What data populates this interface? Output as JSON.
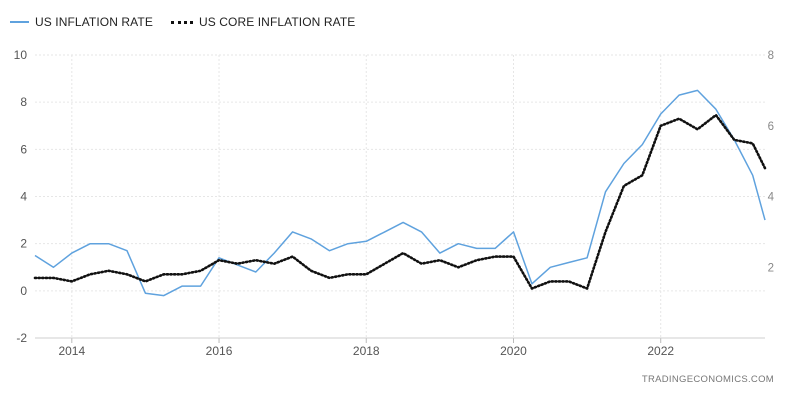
{
  "chart_data": {
    "type": "line",
    "title": "",
    "xlabel": "",
    "ylabel": "",
    "xlim": [
      "2013-07",
      "2023-06"
    ],
    "ylim": [
      -2,
      10
    ],
    "y2lim": [
      0,
      8
    ],
    "grid": true,
    "legend_position": "top-left",
    "x_ticks": [
      "2014",
      "2016",
      "2018",
      "2020",
      "2022"
    ],
    "y_ticks": [
      "10",
      "8",
      "6",
      "4",
      "2",
      "0",
      "-2"
    ],
    "y2_ticks": [
      "8",
      "6",
      "4",
      "2"
    ],
    "series": [
      {
        "name": "US INFLATION RATE",
        "axis": "left",
        "color": "#5fa2de",
        "style": "solid",
        "points": [
          [
            "2013-07",
            1.5
          ],
          [
            "2013-10",
            1.0
          ],
          [
            "2014-01",
            1.6
          ],
          [
            "2014-04",
            2.0
          ],
          [
            "2014-07",
            2.0
          ],
          [
            "2014-10",
            1.7
          ],
          [
            "2015-01",
            -0.1
          ],
          [
            "2015-04",
            -0.2
          ],
          [
            "2015-07",
            0.2
          ],
          [
            "2015-10",
            0.2
          ],
          [
            "2016-01",
            1.4
          ],
          [
            "2016-04",
            1.1
          ],
          [
            "2016-07",
            0.8
          ],
          [
            "2016-10",
            1.6
          ],
          [
            "2017-01",
            2.5
          ],
          [
            "2017-04",
            2.2
          ],
          [
            "2017-07",
            1.7
          ],
          [
            "2017-10",
            2.0
          ],
          [
            "2018-01",
            2.1
          ],
          [
            "2018-04",
            2.5
          ],
          [
            "2018-07",
            2.9
          ],
          [
            "2018-10",
            2.5
          ],
          [
            "2019-01",
            1.6
          ],
          [
            "2019-04",
            2.0
          ],
          [
            "2019-07",
            1.8
          ],
          [
            "2019-10",
            1.8
          ],
          [
            "2020-01",
            2.5
          ],
          [
            "2020-04",
            0.3
          ],
          [
            "2020-07",
            1.0
          ],
          [
            "2020-10",
            1.2
          ],
          [
            "2021-01",
            1.4
          ],
          [
            "2021-04",
            4.2
          ],
          [
            "2021-07",
            5.4
          ],
          [
            "2021-10",
            6.2
          ],
          [
            "2022-01",
            7.5
          ],
          [
            "2022-04",
            8.3
          ],
          [
            "2022-07",
            8.5
          ],
          [
            "2022-10",
            7.7
          ],
          [
            "2023-01",
            6.4
          ],
          [
            "2023-04",
            4.9
          ],
          [
            "2023-06",
            3.0
          ]
        ]
      },
      {
        "name": "US CORE INFLATION RATE",
        "axis": "right",
        "color": "#111111",
        "style": "dotted",
        "points": [
          [
            "2013-07",
            1.7
          ],
          [
            "2013-10",
            1.7
          ],
          [
            "2014-01",
            1.6
          ],
          [
            "2014-04",
            1.8
          ],
          [
            "2014-07",
            1.9
          ],
          [
            "2014-10",
            1.8
          ],
          [
            "2015-01",
            1.6
          ],
          [
            "2015-04",
            1.8
          ],
          [
            "2015-07",
            1.8
          ],
          [
            "2015-10",
            1.9
          ],
          [
            "2016-01",
            2.2
          ],
          [
            "2016-04",
            2.1
          ],
          [
            "2016-07",
            2.2
          ],
          [
            "2016-10",
            2.1
          ],
          [
            "2017-01",
            2.3
          ],
          [
            "2017-04",
            1.9
          ],
          [
            "2017-07",
            1.7
          ],
          [
            "2017-10",
            1.8
          ],
          [
            "2018-01",
            1.8
          ],
          [
            "2018-04",
            2.1
          ],
          [
            "2018-07",
            2.4
          ],
          [
            "2018-10",
            2.1
          ],
          [
            "2019-01",
            2.2
          ],
          [
            "2019-04",
            2.0
          ],
          [
            "2019-07",
            2.2
          ],
          [
            "2019-10",
            2.3
          ],
          [
            "2020-01",
            2.3
          ],
          [
            "2020-04",
            1.4
          ],
          [
            "2020-07",
            1.6
          ],
          [
            "2020-10",
            1.6
          ],
          [
            "2021-01",
            1.4
          ],
          [
            "2021-04",
            3.0
          ],
          [
            "2021-07",
            4.3
          ],
          [
            "2021-10",
            4.6
          ],
          [
            "2022-01",
            6.0
          ],
          [
            "2022-04",
            6.2
          ],
          [
            "2022-07",
            5.9
          ],
          [
            "2022-10",
            6.3
          ],
          [
            "2023-01",
            5.6
          ],
          [
            "2023-04",
            5.5
          ],
          [
            "2023-06",
            4.8
          ]
        ]
      }
    ]
  },
  "source_credit": "TRADINGECONOMICS.COM"
}
